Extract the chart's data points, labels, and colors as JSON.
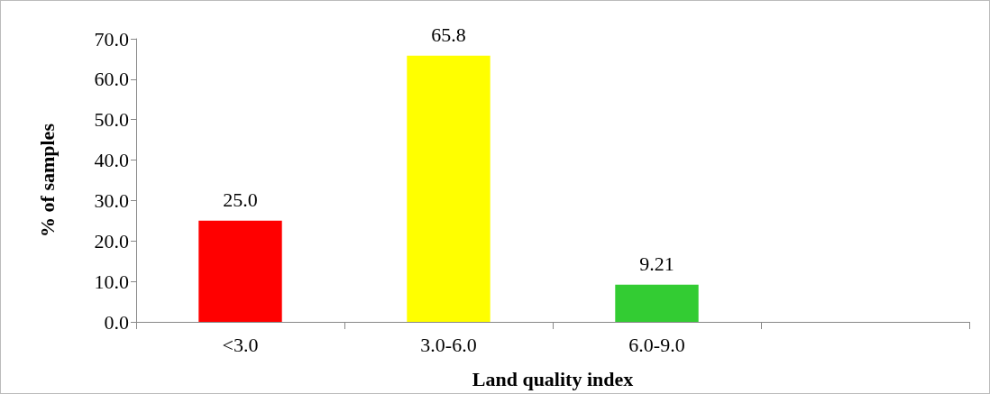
{
  "chart_data": {
    "type": "bar",
    "xlabel": "Land quality index",
    "ylabel": "% of samples",
    "categories": [
      "<3.0",
      "3.0-6.0",
      "6.0-9.0",
      null
    ],
    "values": [
      25.0,
      65.8,
      9.21,
      null
    ],
    "colors": [
      "#ff0000",
      "#ffff00",
      "#33cc33",
      null
    ],
    "value_labels": [
      "25.0",
      "65.8",
      "9.21",
      null
    ],
    "ylim": [
      0,
      70
    ],
    "yticks": [
      {
        "value": 0,
        "label": "0.0"
      },
      {
        "value": 10,
        "label": "10.0"
      },
      {
        "value": 20,
        "label": "20.0"
      },
      {
        "value": 30,
        "label": "30.0"
      },
      {
        "value": 40,
        "label": "40.0"
      },
      {
        "value": 50,
        "label": "50.0"
      },
      {
        "value": 60,
        "label": "60.0"
      },
      {
        "value": 70,
        "label": "70.0"
      }
    ],
    "grid": false
  }
}
